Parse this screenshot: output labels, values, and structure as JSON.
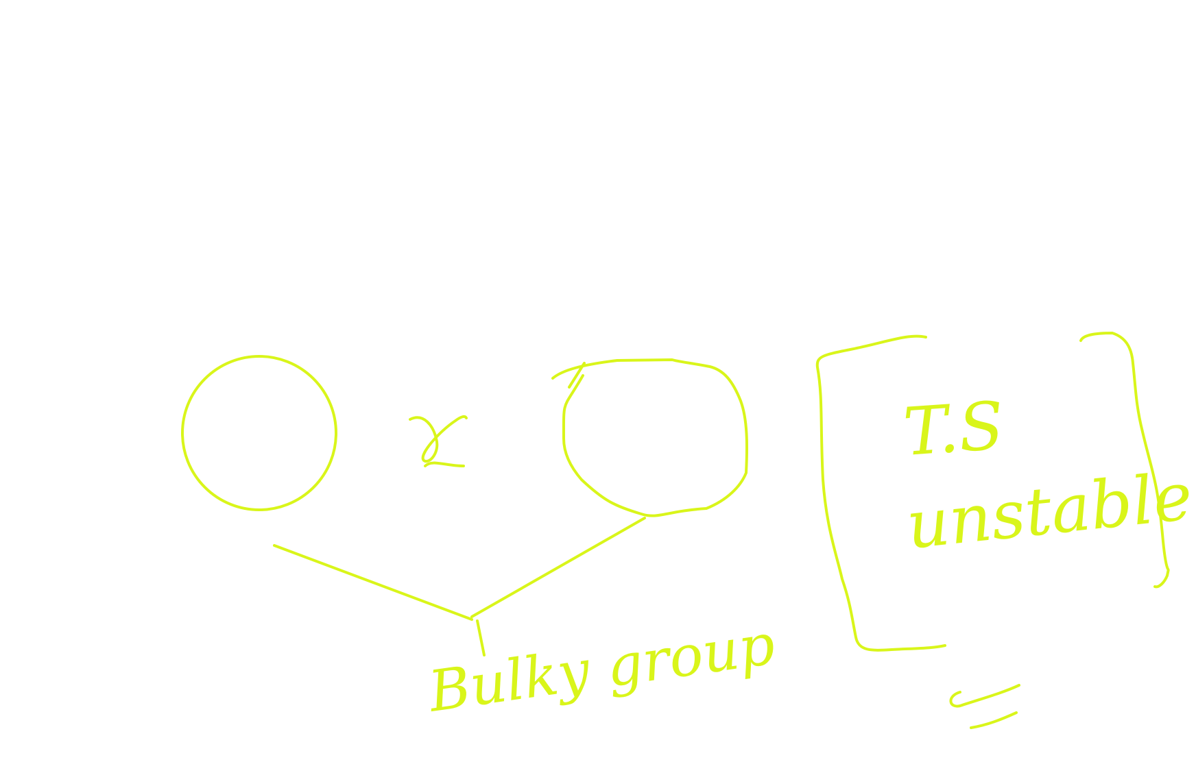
{
  "canvas": {
    "background": "#ffffff",
    "ink_color": "#d9f51a"
  },
  "annotations": {
    "operator": "x",
    "bulky_label": "Bulky group",
    "ts_label": "T.S",
    "unstable_label": "unstable"
  }
}
